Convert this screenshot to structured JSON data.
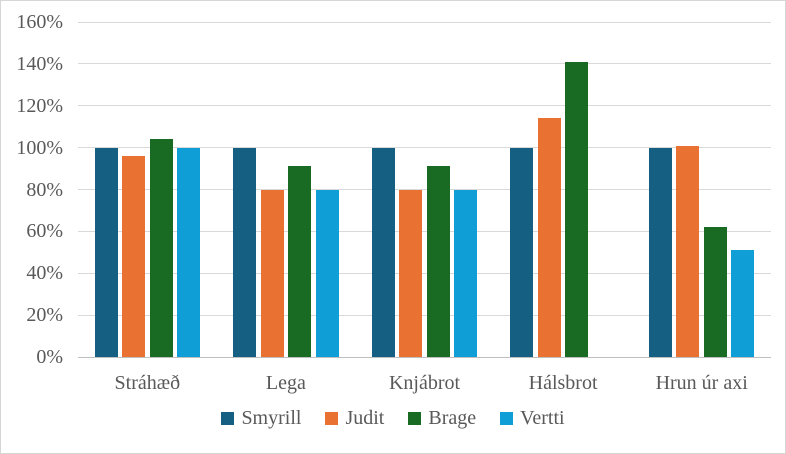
{
  "chart_data": {
    "type": "bar",
    "title": "",
    "xlabel": "",
    "ylabel": "",
    "categories": [
      "Stráhæð",
      "Lega",
      "Knjábrot",
      "Hálsbrot",
      "Hrun úr axi"
    ],
    "series": [
      {
        "name": "Smyrill",
        "color": "#156082",
        "values": [
          100,
          100,
          100,
          100,
          100
        ]
      },
      {
        "name": "Judit",
        "color": "#E97132",
        "values": [
          96,
          80,
          80,
          114,
          101
        ]
      },
      {
        "name": "Brage",
        "color": "#196B24",
        "values": [
          104,
          91,
          91,
          141,
          62
        ]
      },
      {
        "name": "Vertti",
        "color": "#0F9ED5",
        "values": [
          100,
          80,
          80,
          0,
          51
        ]
      }
    ],
    "ylim": [
      0,
      160
    ],
    "ytick_step": 20,
    "ytick_labels": [
      "0%",
      "20%",
      "40%",
      "60%",
      "80%",
      "100%",
      "120%",
      "140%",
      "160%"
    ],
    "value_unit": "percent",
    "grid": "horizontal",
    "gridline_color": "#D9D9D9",
    "axis_text_color": "#595959",
    "legend_position": "bottom",
    "legend_entries": [
      "Smyrill",
      "Judit",
      "Brage",
      "Vertti"
    ]
  }
}
